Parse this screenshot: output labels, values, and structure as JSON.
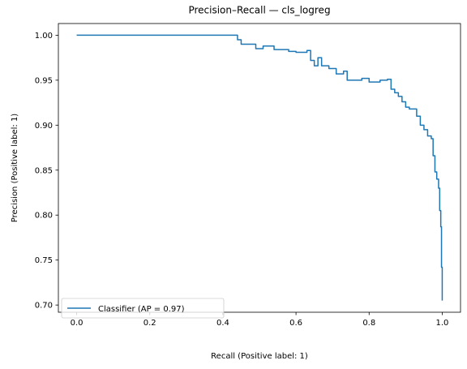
{
  "chart_data": {
    "type": "line",
    "title": "Precision–Recall — cls_logreg",
    "xlabel": "Recall (Positive label: 1)",
    "ylabel": "Precision (Positive label: 1)",
    "xlim": [
      -0.05,
      1.05
    ],
    "ylim": [
      0.692,
      1.013
    ],
    "x_ticks": [
      0.0,
      0.2,
      0.4,
      0.6,
      0.8,
      1.0
    ],
    "x_tick_labels": [
      "0.0",
      "0.2",
      "0.4",
      "0.6",
      "0.8",
      "1.0"
    ],
    "y_ticks": [
      0.7,
      0.75,
      0.8,
      0.85,
      0.9,
      0.95,
      1.0
    ],
    "y_tick_labels": [
      "0.70",
      "0.75",
      "0.80",
      "0.85",
      "0.90",
      "0.95",
      "1.00"
    ],
    "grid": false,
    "legend_position": "lower-left",
    "series": [
      {
        "name": "Classifier (AP = 0.97)",
        "color": "#1f77b4",
        "step": true,
        "x": [
          0.0,
          0.44,
          0.44,
          0.45,
          0.45,
          0.46,
          0.46,
          0.49,
          0.49,
          0.51,
          0.51,
          0.54,
          0.54,
          0.58,
          0.58,
          0.6,
          0.6,
          0.63,
          0.63,
          0.64,
          0.64,
          0.65,
          0.65,
          0.66,
          0.66,
          0.67,
          0.67,
          0.69,
          0.69,
          0.71,
          0.71,
          0.73,
          0.73,
          0.74,
          0.74,
          0.78,
          0.78,
          0.8,
          0.8,
          0.83,
          0.83,
          0.85,
          0.85,
          0.86,
          0.86,
          0.87,
          0.87,
          0.88,
          0.88,
          0.89,
          0.89,
          0.9,
          0.9,
          0.91,
          0.91,
          0.92,
          0.92,
          0.93,
          0.93,
          0.94,
          0.94,
          0.95,
          0.95,
          0.96,
          0.96,
          0.97,
          0.97,
          0.975,
          0.975,
          0.98,
          0.98,
          0.985,
          0.985,
          0.99,
          0.99,
          0.993,
          0.993,
          0.996,
          0.996,
          0.998,
          0.998,
          1.0,
          1.0
        ],
        "y": [
          1.0,
          1.0,
          0.995,
          0.995,
          0.99,
          0.99,
          0.99,
          0.99,
          0.985,
          0.985,
          0.988,
          0.988,
          0.984,
          0.984,
          0.982,
          0.982,
          0.981,
          0.981,
          0.983,
          0.983,
          0.972,
          0.972,
          0.966,
          0.966,
          0.975,
          0.975,
          0.966,
          0.966,
          0.963,
          0.963,
          0.957,
          0.957,
          0.96,
          0.96,
          0.95,
          0.95,
          0.952,
          0.952,
          0.948,
          0.948,
          0.95,
          0.95,
          0.951,
          0.951,
          0.94,
          0.94,
          0.936,
          0.936,
          0.932,
          0.932,
          0.926,
          0.926,
          0.92,
          0.92,
          0.918,
          0.918,
          0.918,
          0.918,
          0.91,
          0.91,
          0.9,
          0.9,
          0.895,
          0.895,
          0.888,
          0.888,
          0.885,
          0.885,
          0.866,
          0.866,
          0.848,
          0.848,
          0.84,
          0.84,
          0.83,
          0.83,
          0.805,
          0.805,
          0.787,
          0.787,
          0.742,
          0.742,
          0.705
        ]
      }
    ]
  }
}
